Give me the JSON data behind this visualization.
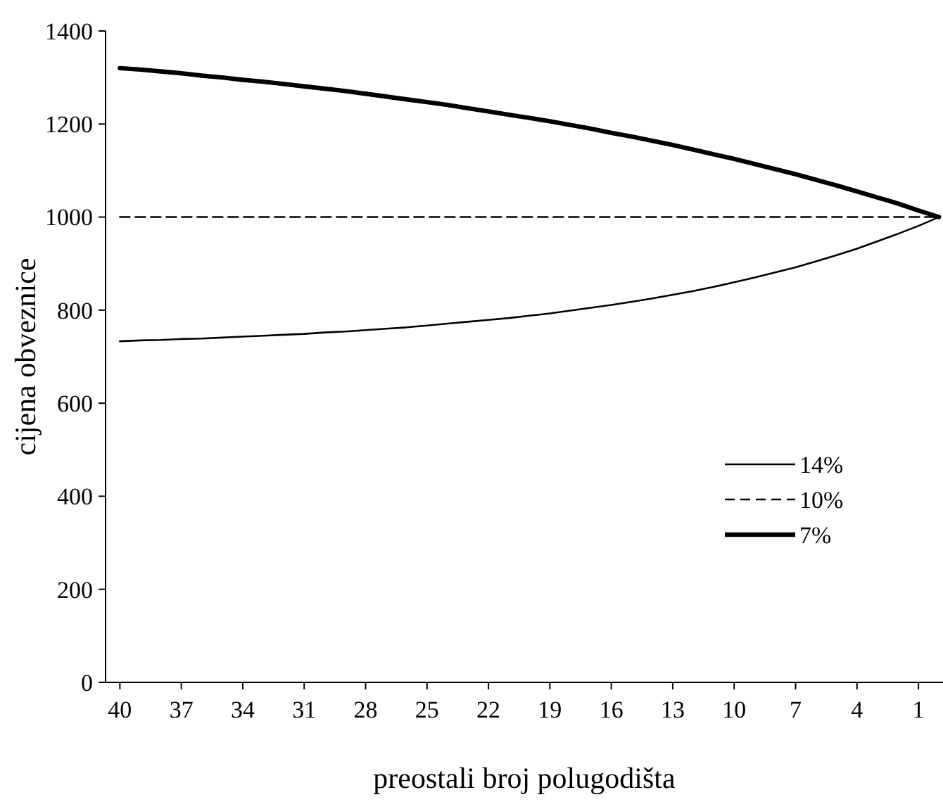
{
  "chart_data": {
    "type": "line",
    "xlabel": "preostali broj polugodišta",
    "ylabel": "cijena obveznice",
    "x": [
      40,
      39,
      38,
      37,
      36,
      35,
      34,
      33,
      32,
      31,
      30,
      29,
      28,
      27,
      26,
      25,
      24,
      23,
      22,
      21,
      20,
      19,
      18,
      17,
      16,
      15,
      14,
      13,
      12,
      11,
      10,
      9,
      8,
      7,
      6,
      5,
      4,
      3,
      2,
      1,
      0
    ],
    "xlim": [
      40.7,
      -0.2
    ],
    "xticks": [
      40,
      37,
      34,
      31,
      28,
      25,
      22,
      19,
      16,
      13,
      10,
      7,
      4,
      1
    ],
    "ylim": [
      0,
      1400
    ],
    "yticks": [
      0,
      200,
      400,
      600,
      800,
      1000,
      1200,
      1400
    ],
    "grid": false,
    "legend": "right",
    "marker": "none",
    "series": [
      {
        "name": "14%",
        "color": "#000000",
        "line_style": "solid",
        "values": [
          733,
          735,
          736,
          738,
          739,
          741,
          743,
          745,
          747,
          749,
          752,
          754,
          757,
          760,
          763,
          767,
          771,
          775,
          779,
          783,
          788,
          793,
          799,
          805,
          811,
          818,
          825,
          833,
          841,
          850,
          860,
          870,
          881,
          892,
          905,
          918,
          932,
          948,
          964,
          981,
          1000
        ]
      },
      {
        "name": "10%",
        "color": "#000000",
        "line_style": "dashed",
        "values": [
          1000,
          1000,
          1000,
          1000,
          1000,
          1000,
          1000,
          1000,
          1000,
          1000,
          1000,
          1000,
          1000,
          1000,
          1000,
          1000,
          1000,
          1000,
          1000,
          1000,
          1000,
          1000,
          1000,
          1000,
          1000,
          1000,
          1000,
          1000,
          1000,
          1000,
          1000,
          1000,
          1000,
          1000,
          1000,
          1000,
          1000,
          1000,
          1000,
          1000,
          1000
        ]
      },
      {
        "name": "7%",
        "color": "#000000",
        "line_style": "solid",
        "values": [
          1320,
          1317,
          1313,
          1309,
          1304,
          1300,
          1295,
          1291,
          1286,
          1281,
          1276,
          1271,
          1265,
          1259,
          1253,
          1247,
          1241,
          1234,
          1227,
          1220,
          1213,
          1206,
          1198,
          1190,
          1181,
          1173,
          1164,
          1155,
          1145,
          1135,
          1125,
          1114,
          1103,
          1092,
          1080,
          1068,
          1055,
          1042,
          1029,
          1014,
          1000
        ]
      }
    ]
  }
}
